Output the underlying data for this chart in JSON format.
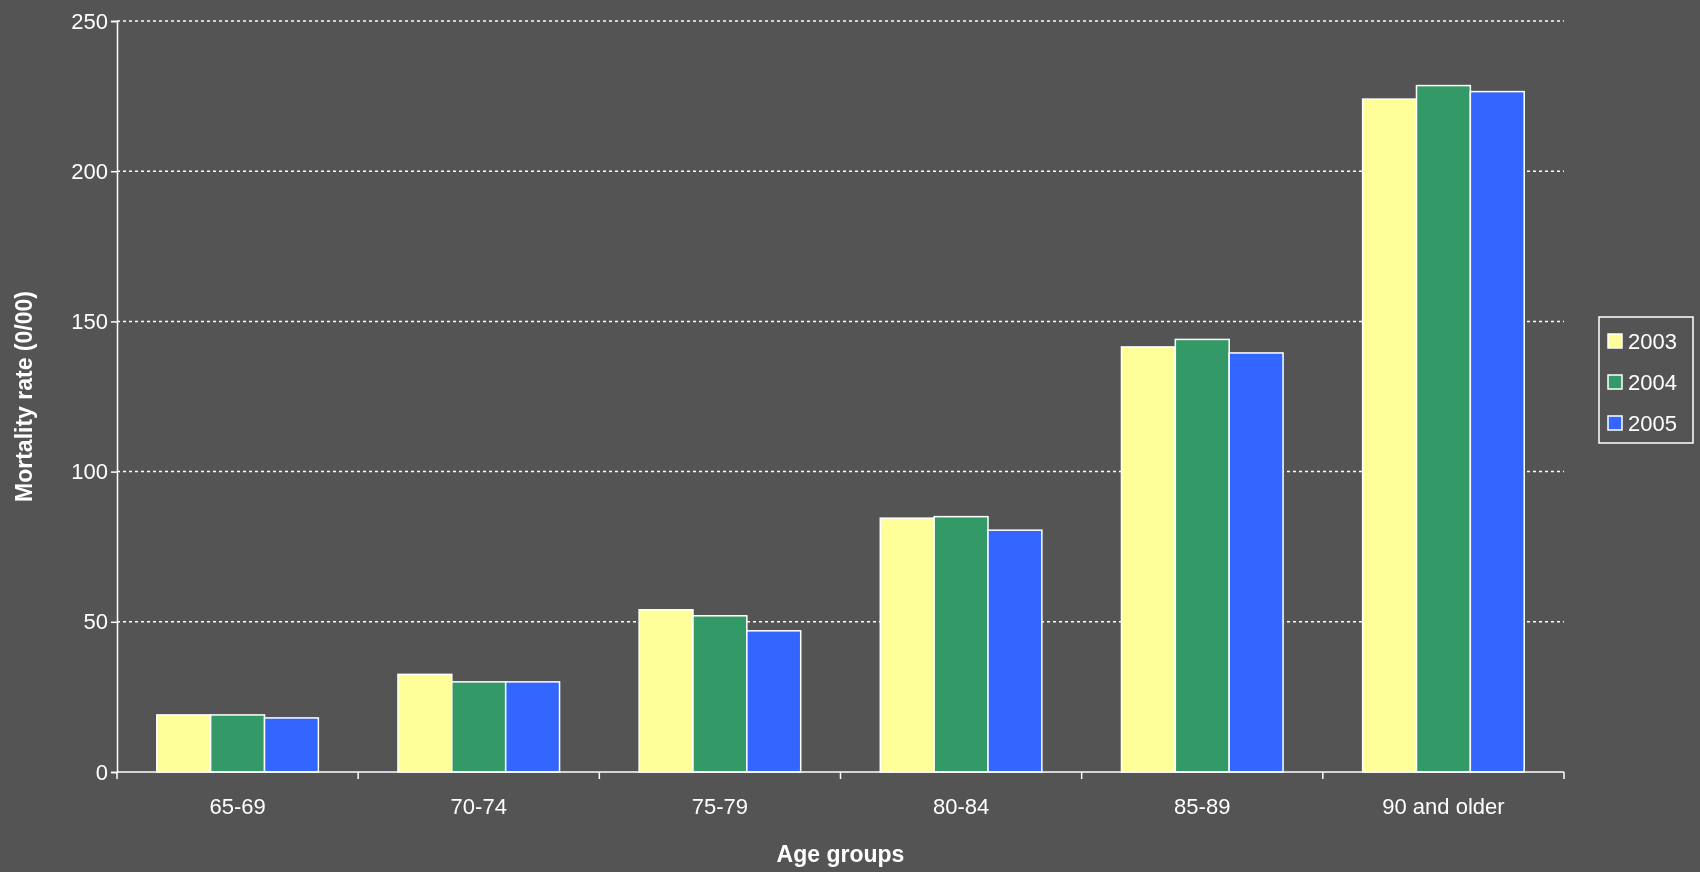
{
  "chart_data": {
    "type": "bar",
    "xlabel": "Age groups",
    "ylabel": "Mortality rate (0/00)",
    "categories": [
      "65-69",
      "70-74",
      "75-79",
      "80-84",
      "85-89",
      "90 and older"
    ],
    "series": [
      {
        "name": "2003",
        "color": "#ffff99",
        "values": [
          19,
          32.5,
          54,
          84.5,
          141.5,
          224
        ]
      },
      {
        "name": "2004",
        "color": "#339966",
        "values": [
          19,
          30,
          52,
          85,
          144,
          228.5
        ]
      },
      {
        "name": "2005",
        "color": "#3366ff",
        "values": [
          18,
          30,
          47,
          80.5,
          139.5,
          226.5
        ]
      }
    ],
    "ylim": [
      0,
      250
    ],
    "yticks": [
      0,
      50,
      100,
      150,
      200,
      250
    ],
    "grid": "y",
    "legend": "right"
  }
}
